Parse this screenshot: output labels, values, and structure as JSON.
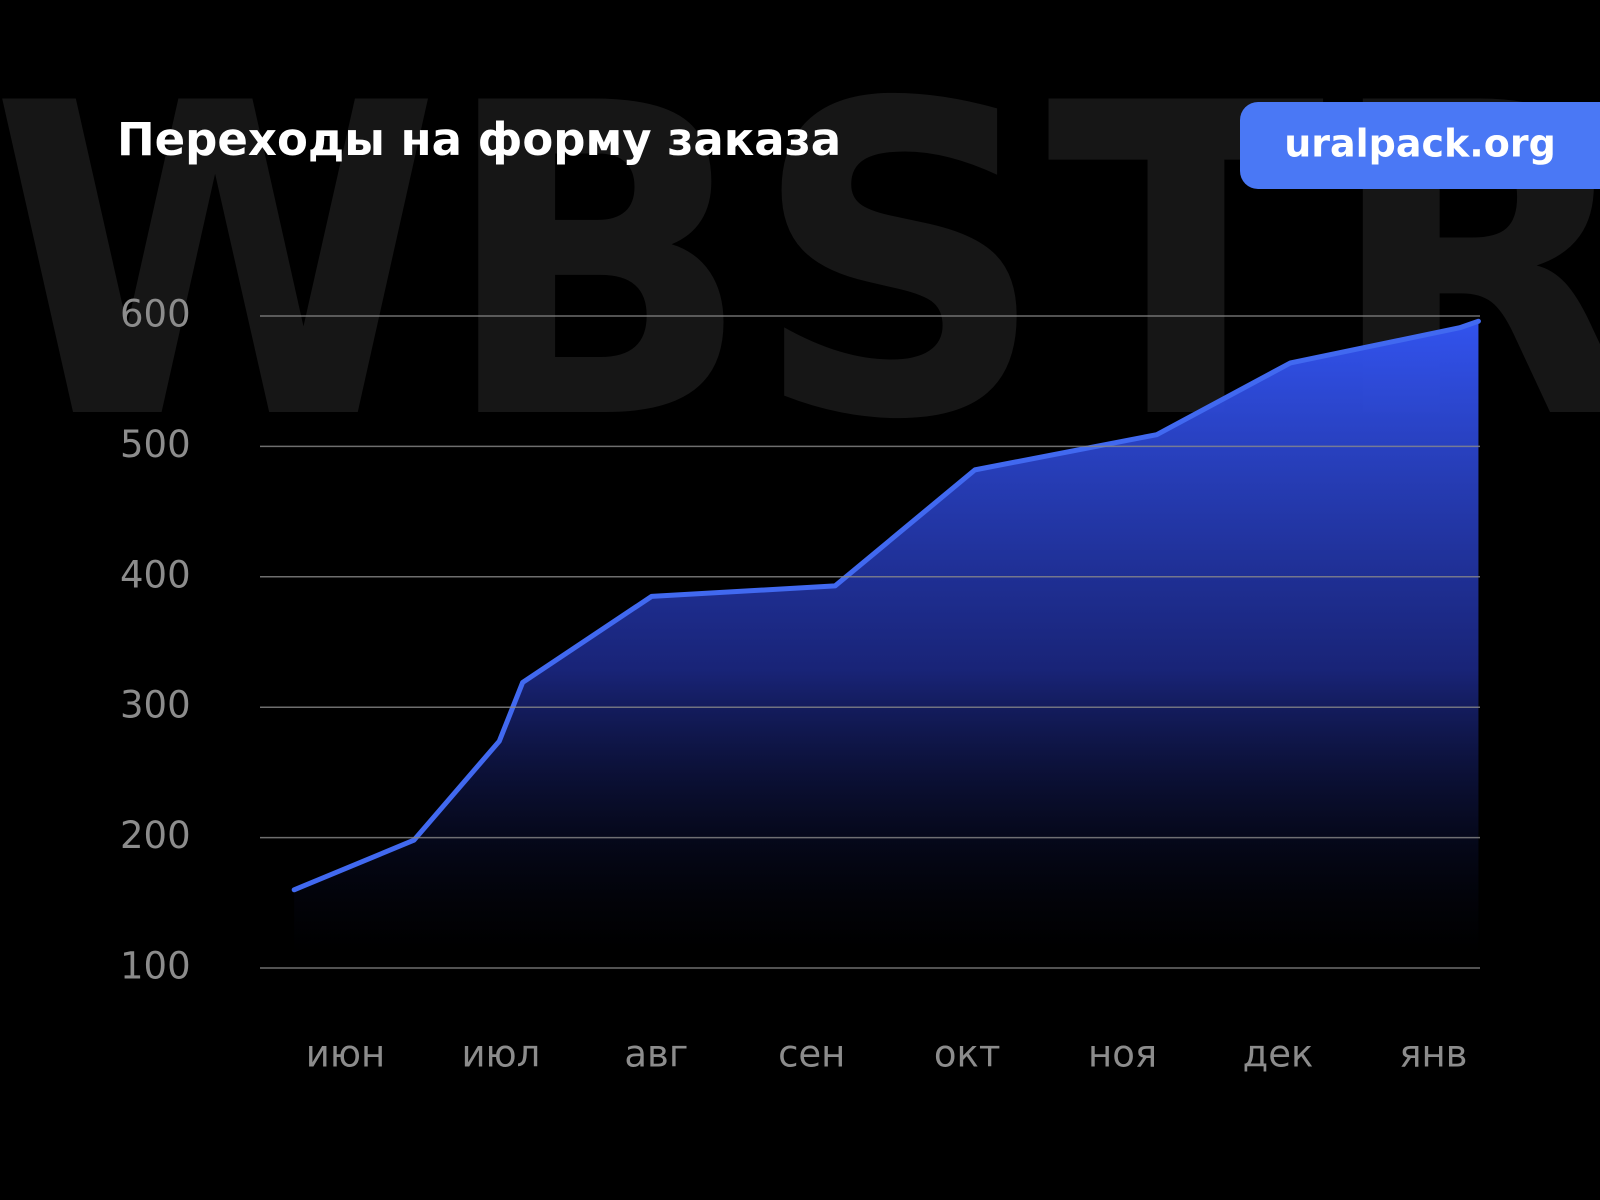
{
  "watermark": "WBSTR",
  "badge": "uralpack.org",
  "chart_data": {
    "type": "area",
    "title": "Переходы на форму заказа",
    "x": [
      -0.33,
      0.44,
      0.99,
      1.14,
      1.97,
      3.15,
      4.05,
      5.22,
      6.08,
      7.17,
      7.29
    ],
    "series": [
      {
        "name": null,
        "color": "#4169f0",
        "values": [
          160,
          198,
          274,
          319,
          385,
          393,
          482,
          509,
          564,
          591,
          596
        ]
      }
    ],
    "xlim": [
      -0.55,
      7.3
    ],
    "xticks": [
      {
        "value": 0,
        "label": "июн"
      },
      {
        "value": 1,
        "label": "июл"
      },
      {
        "value": 2,
        "label": "авг"
      },
      {
        "value": 3,
        "label": "сен"
      },
      {
        "value": 4,
        "label": "окт"
      },
      {
        "value": 5,
        "label": "ноя"
      },
      {
        "value": 6,
        "label": "дек"
      },
      {
        "value": 7,
        "label": "янв"
      }
    ],
    "ylim": [
      100,
      600
    ],
    "yticks": [
      100,
      200,
      300,
      400,
      500,
      600
    ],
    "grid": true
  }
}
